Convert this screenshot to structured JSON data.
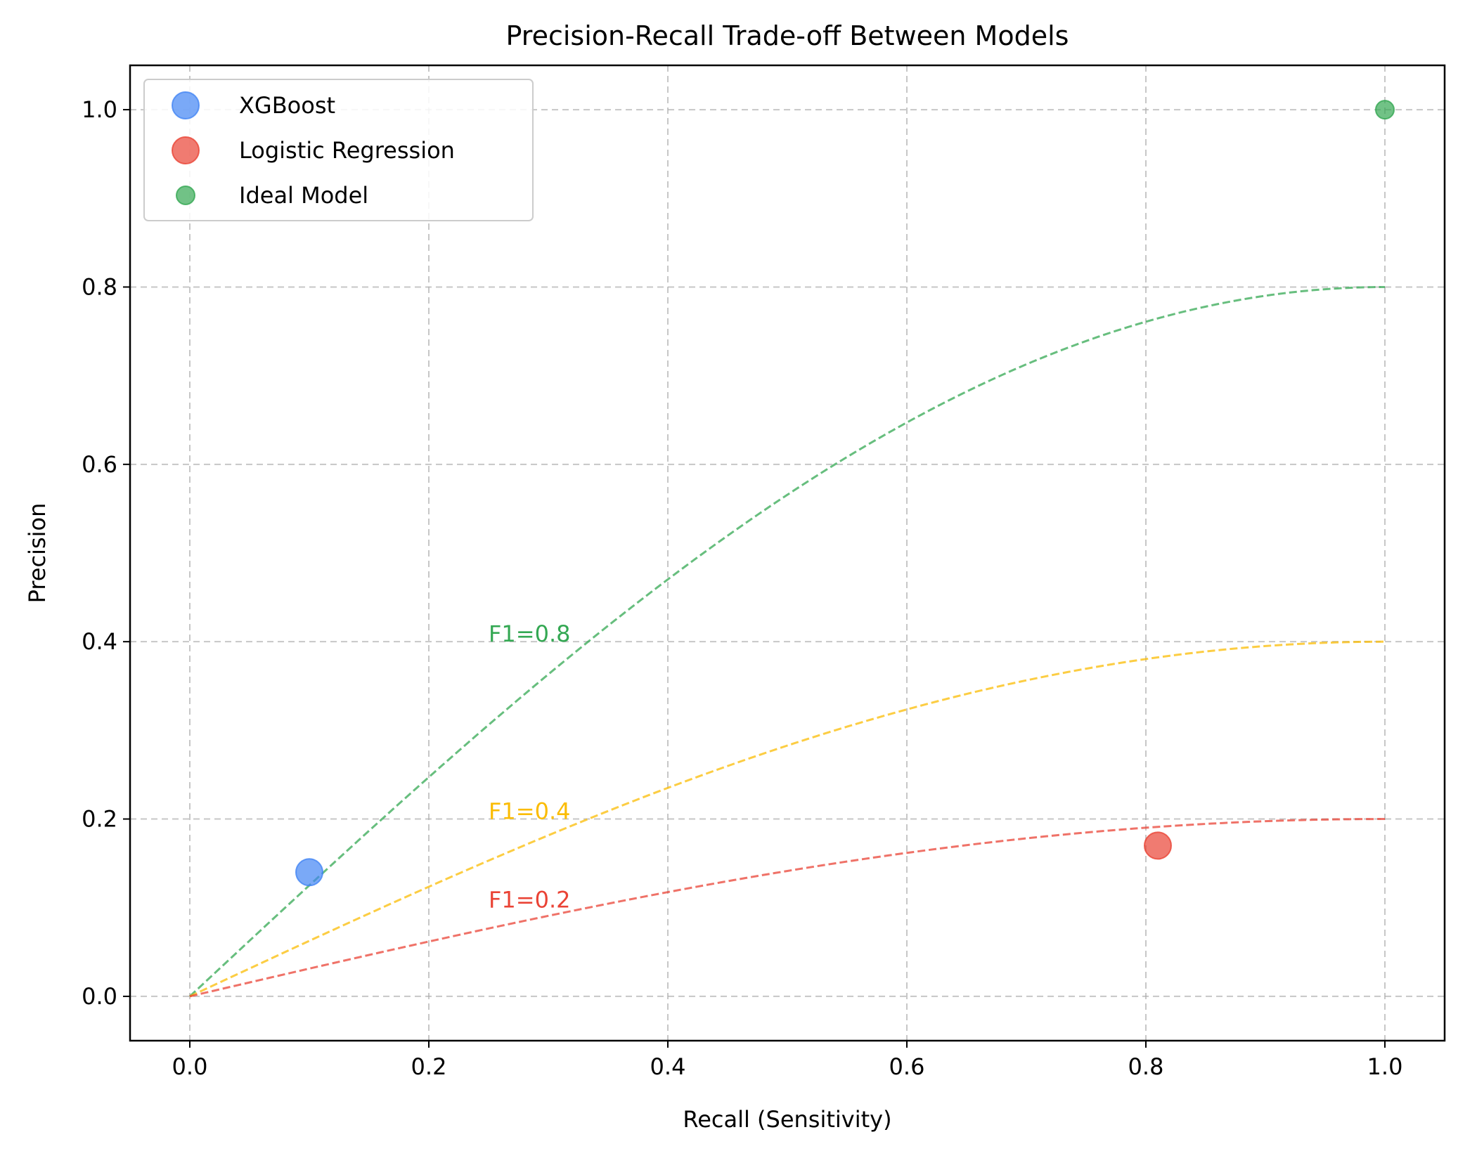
{
  "chart_data": {
    "type": "scatter",
    "title": "Precision-Recall Trade-off Between Models",
    "xlabel": "Recall (Sensitivity)",
    "ylabel": "Precision",
    "xlim": [
      -0.05,
      1.05
    ],
    "ylim": [
      -0.05,
      1.05
    ],
    "xticks": [
      0.0,
      0.2,
      0.4,
      0.6,
      0.8,
      1.0
    ],
    "yticks": [
      0.0,
      0.2,
      0.4,
      0.6,
      0.8,
      1.0
    ],
    "xtick_labels": [
      "0.0",
      "0.2",
      "0.4",
      "0.6",
      "0.8",
      "1.0"
    ],
    "ytick_labels": [
      "0.0",
      "0.2",
      "0.4",
      "0.6",
      "0.8",
      "1.0"
    ],
    "grid": true,
    "legend_position": "top-left",
    "series": [
      {
        "name": "XGBoost",
        "color": "#4285F4",
        "marker_size": "large",
        "points": [
          {
            "x": 0.1,
            "y": 0.14
          }
        ]
      },
      {
        "name": "Logistic Regression",
        "color": "#EA4335",
        "marker_size": "large",
        "points": [
          {
            "x": 0.81,
            "y": 0.17
          }
        ]
      },
      {
        "name": "Ideal Model",
        "color": "#34A853",
        "marker_size": "small",
        "points": [
          {
            "x": 1.0,
            "y": 1.0
          }
        ]
      }
    ],
    "f1_curves": [
      {
        "label": "F1=0.8",
        "f1": 0.8,
        "color": "#34A853",
        "label_x": 0.25,
        "label_y": 0.4
      },
      {
        "label": "F1=0.4",
        "f1": 0.4,
        "color": "#FBBC04",
        "label_x": 0.25,
        "label_y": 0.2
      },
      {
        "label": "F1=0.2",
        "f1": 0.2,
        "color": "#EA4335",
        "label_x": 0.25,
        "label_y": 0.1
      }
    ]
  }
}
